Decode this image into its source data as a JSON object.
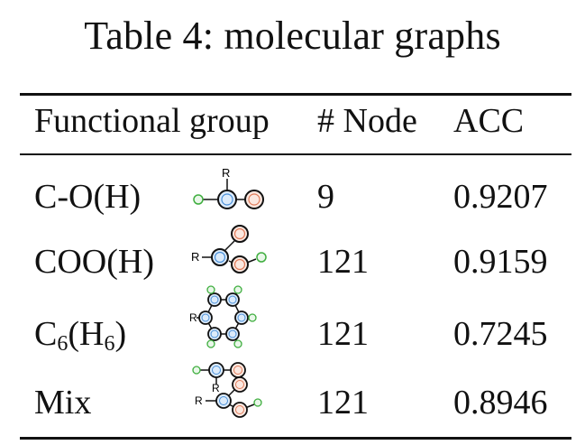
{
  "title": "Table 4: molecular graphs",
  "headers": {
    "group": "Functional group",
    "nodes": "# Node",
    "acc": "ACC"
  },
  "rows": [
    {
      "group": "C-O(H)",
      "nodes": "9",
      "acc": "0.9207",
      "icon": "hydroxyl-graph-icon"
    },
    {
      "group": "COO(H)",
      "nodes": "121",
      "acc": "0.9159",
      "icon": "carboxyl-graph-icon"
    },
    {
      "group_base": "C",
      "group_sub1": "6",
      "group_mid": "(H",
      "group_sub2": "6",
      "group_end": ")",
      "nodes": "121",
      "acc": "0.7245",
      "icon": "benzene-graph-icon"
    },
    {
      "group": "Mix",
      "nodes": "121",
      "acc": "0.8946",
      "icon": "mixed-graph-icon"
    }
  ],
  "molecule_labels": {
    "r": "R",
    "c": "C",
    "o": "O",
    "h": "H"
  },
  "colors": {
    "carbon": "#4a90d9",
    "oxygen": "#e07b5a",
    "hydrogen": "#3fae3f",
    "rule": "#111111"
  }
}
